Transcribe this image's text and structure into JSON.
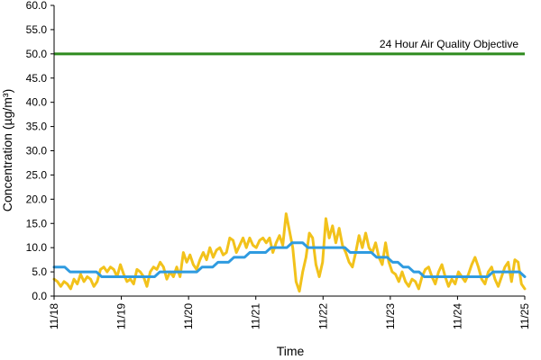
{
  "chart_data": {
    "type": "line",
    "title": "",
    "xlabel": "Time",
    "ylabel": "Concentration (µg/m³)",
    "x_tick_labels": [
      "11/18",
      "11/19",
      "11/20",
      "11/21",
      "11/22",
      "11/23",
      "11/24",
      "11/25"
    ],
    "x_range_days": [
      0,
      7
    ],
    "ylim": [
      0,
      60
    ],
    "y_ticks": [
      "0.0",
      "5.0",
      "10.0",
      "15.0",
      "20.0",
      "25.0",
      "30.0",
      "35.0",
      "40.0",
      "45.0",
      "50.0",
      "55.0",
      "60.0"
    ],
    "grid": false,
    "objective": {
      "label": "24 Hour Air Quality Objective",
      "value": 50,
      "color": "#2e8b1e"
    },
    "series": [
      {
        "color": "#f2c21b",
        "values": [
          3.5,
          3.0,
          2.0,
          3.0,
          2.5,
          1.5,
          3.5,
          2.5,
          4.5,
          3.0,
          4.0,
          3.5,
          2.0,
          3.0,
          5.5,
          6.0,
          5.0,
          6.0,
          5.5,
          4.0,
          6.5,
          4.5,
          3.0,
          3.5,
          2.5,
          5.5,
          5.0,
          4.0,
          2.0,
          5.0,
          6.0,
          5.5,
          7.0,
          6.0,
          3.5,
          5.0,
          4.0,
          6.0,
          4.0,
          9.0,
          7.0,
          8.5,
          6.5,
          5.5,
          7.5,
          9.0,
          7.5,
          10.0,
          8.0,
          9.5,
          10.0,
          8.5,
          9.0,
          12.0,
          11.5,
          9.0,
          10.5,
          12.0,
          10.0,
          12.0,
          10.5,
          10.0,
          11.5,
          12.0,
          11.0,
          12.0,
          9.0,
          11.0,
          12.5,
          10.5,
          17.0,
          13.5,
          10.0,
          3.0,
          1.0,
          5.0,
          8.0,
          13.0,
          12.0,
          6.5,
          4.0,
          7.0,
          16.0,
          12.0,
          14.5,
          11.0,
          14.0,
          10.5,
          9.0,
          7.0,
          6.0,
          9.0,
          12.5,
          10.0,
          13.0,
          10.0,
          9.0,
          11.0,
          8.0,
          6.5,
          11.0,
          7.0,
          5.0,
          4.5,
          3.0,
          5.0,
          3.0,
          2.0,
          3.5,
          3.0,
          1.5,
          4.0,
          5.5,
          6.0,
          4.0,
          2.5,
          5.0,
          6.5,
          4.0,
          2.0,
          3.5,
          2.5,
          5.0,
          4.0,
          3.0,
          4.5,
          6.5,
          8.0,
          6.0,
          3.5,
          2.5,
          5.0,
          6.0,
          3.5,
          2.0,
          4.0,
          6.0,
          7.0,
          3.0,
          7.5,
          7.0,
          2.5,
          1.5
        ]
      },
      {
        "color": "#2f9be0",
        "values": [
          6,
          6,
          6,
          5,
          5,
          5,
          5,
          5,
          5,
          4,
          4,
          4,
          4,
          4,
          4,
          4,
          4,
          4,
          4,
          4,
          5,
          5,
          5,
          5,
          5,
          5,
          5,
          5,
          6,
          6,
          6,
          7,
          7,
          7,
          8,
          8,
          8,
          9,
          9,
          9,
          9,
          10,
          10,
          10,
          10,
          11,
          11,
          11,
          10,
          10,
          10,
          10,
          10,
          10,
          10,
          10,
          9,
          9,
          9,
          9,
          9,
          8,
          8,
          8,
          7,
          7,
          6,
          6,
          5,
          5,
          4,
          4,
          4,
          4,
          4,
          4,
          4,
          4,
          4,
          4,
          4,
          4,
          4,
          5,
          5,
          5,
          5,
          5,
          5,
          4
        ]
      }
    ]
  }
}
